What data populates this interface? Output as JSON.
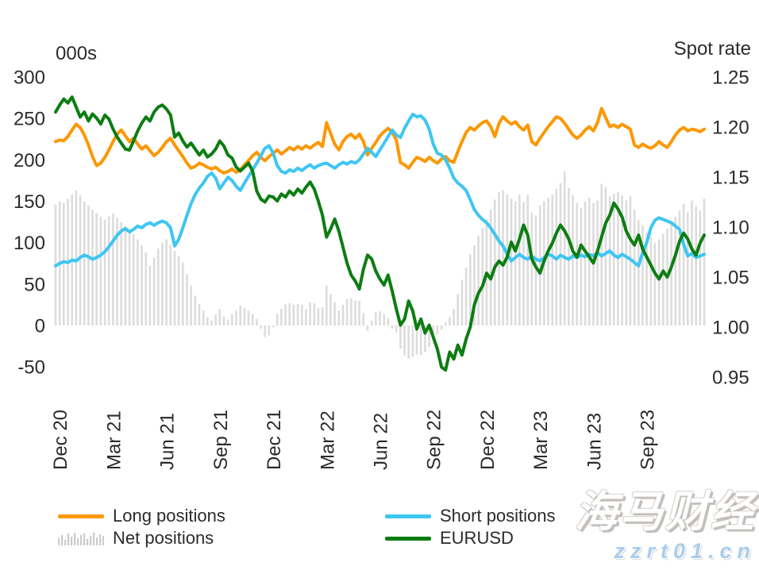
{
  "header": {
    "left_axis_unit": "000s",
    "right_axis_label": "Spot rate"
  },
  "colors": {
    "long": "#FB9804",
    "short": "#3EC6F3",
    "eurusd": "#0D7D12",
    "net": "#DCDCDC",
    "legend_net_icon": "#CBCBCB",
    "axis_text": "#2b2b2b",
    "watermark_line2": "#a9cdec"
  },
  "legend": {
    "items": [
      {
        "label": "Long positions",
        "swatch": "line",
        "color": "#FB9804"
      },
      {
        "label": "Net positions",
        "swatch": "bars",
        "color": "#CBCBCB"
      },
      {
        "label": "Short positions",
        "swatch": "line",
        "color": "#3EC6F3"
      },
      {
        "label": "EURUSD",
        "swatch": "line",
        "color": "#0D7D12"
      }
    ]
  },
  "watermark": {
    "line1": "海马财经",
    "line2": "zzrt01.cn"
  },
  "chart_data": {
    "type": "line",
    "subtype": "combo line+bar, dual axis, weekly data",
    "title": "",
    "xlabel": "",
    "ylabel_left": "000s",
    "ylabel_right": "Spot rate",
    "left_axis": {
      "ticks": [
        300,
        250,
        200,
        150,
        100,
        50,
        0,
        -50
      ],
      "range": [
        -50,
        300
      ]
    },
    "right_axis": {
      "ticks": [
        1.25,
        1.2,
        1.15,
        1.1,
        1.05,
        1.0,
        0.95
      ],
      "range": [
        0.95,
        1.25
      ]
    },
    "x_ticks": [
      {
        "label": "Dec 20",
        "index": 1
      },
      {
        "label": "Mar 21",
        "index": 14
      },
      {
        "label": "Jun 21",
        "index": 27
      },
      {
        "label": "Sep 21",
        "index": 40
      },
      {
        "label": "Dec 21",
        "index": 53
      },
      {
        "label": "Mar 22",
        "index": 66
      },
      {
        "label": "Jun 22",
        "index": 79
      },
      {
        "label": "Sep 22",
        "index": 92
      },
      {
        "label": "Dec 22",
        "index": 105
      },
      {
        "label": "Mar 23",
        "index": 118
      },
      {
        "label": "Jun 23",
        "index": 131
      },
      {
        "label": "Sep 23",
        "index": 144
      }
    ],
    "grid": false,
    "legend_position": "bottom",
    "series": [
      {
        "name": "Net positions",
        "type": "bar",
        "axis": "left",
        "color": "#DCDCDC",
        "values": [
          146,
          150,
          148,
          153,
          158,
          163,
          157,
          150,
          145,
          140,
          136,
          131,
          128,
          132,
          135,
          130,
          125,
          120,
          116,
          110,
          104,
          97,
          88,
          72,
          82,
          93,
          100,
          104,
          98,
          90,
          84,
          76,
          62,
          48,
          36,
          26,
          18,
          10,
          6,
          13,
          20,
          11,
          7,
          14,
          18,
          24,
          21,
          18,
          14,
          8,
          -4,
          -14,
          -12,
          -2,
          14,
          20,
          26,
          27,
          25,
          26,
          25,
          20,
          28,
          27,
          21,
          22,
          48,
          38,
          28,
          18,
          25,
          32,
          33,
          30,
          30,
          15,
          -7,
          6,
          16,
          17,
          14,
          9,
          -4,
          -8,
          -28,
          -36,
          -40,
          -38,
          -35,
          -36,
          -32,
          -26,
          -18,
          -11,
          -5,
          4,
          10,
          20,
          38,
          55,
          70,
          86,
          97,
          108,
          118,
          128,
          140,
          152,
          161,
          163,
          158,
          153,
          150,
          158,
          149,
          158,
          136,
          133,
          145,
          150,
          154,
          158,
          165,
          172,
          186,
          166,
          157,
          148,
          142,
          150,
          154,
          148,
          151,
          171,
          167,
          156,
          159,
          161,
          157,
          151,
          156,
          140,
          127,
          121,
          112,
          107,
          100,
          104,
          111,
          117,
          123,
          131,
          139,
          147,
          137,
          151,
          144,
          139,
          153
        ]
      },
      {
        "name": "Long positions",
        "type": "line",
        "axis": "left",
        "color": "#FB9804",
        "values": [
          222,
          224,
          223,
          228,
          236,
          243,
          239,
          230,
          218,
          204,
          193,
          196,
          203,
          212,
          222,
          231,
          236,
          229,
          222,
          226,
          219,
          213,
          217,
          211,
          205,
          209,
          215,
          222,
          226,
          218,
          211,
          204,
          196,
          190,
          192,
          196,
          194,
          191,
          189,
          191,
          187,
          184,
          186,
          189,
          185,
          188,
          194,
          199,
          205,
          209,
          203,
          199,
          204,
          208,
          212,
          207,
          211,
          215,
          212,
          216,
          213,
          217,
          214,
          218,
          221,
          216,
          245,
          232,
          219,
          212,
          222,
          228,
          231,
          226,
          231,
          222,
          206,
          214,
          221,
          229,
          234,
          238,
          233,
          224,
          197,
          194,
          190,
          197,
          203,
          201,
          198,
          203,
          199,
          196,
          201,
          204,
          199,
          197,
          210,
          222,
          233,
          239,
          236,
          241,
          245,
          247,
          240,
          228,
          244,
          252,
          247,
          243,
          246,
          240,
          236,
          242,
          222,
          218,
          226,
          233,
          240,
          246,
          252,
          250,
          244,
          237,
          230,
          226,
          230,
          236,
          240,
          235,
          245,
          262,
          251,
          240,
          242,
          239,
          243,
          240,
          237,
          218,
          215,
          219,
          216,
          214,
          217,
          222,
          218,
          215,
          222,
          230,
          236,
          239,
          235,
          237,
          236,
          234,
          237
        ]
      },
      {
        "name": "Short positions",
        "type": "line",
        "axis": "left",
        "color": "#3EC6F3",
        "values": [
          72,
          75,
          77,
          76,
          79,
          78,
          82,
          85,
          83,
          80,
          82,
          85,
          89,
          95,
          102,
          109,
          114,
          117,
          113,
          116,
          120,
          118,
          122,
          124,
          121,
          124,
          126,
          124,
          118,
          96,
          104,
          118,
          133,
          147,
          158,
          166,
          172,
          180,
          184,
          178,
          165,
          172,
          179,
          175,
          168,
          163,
          172,
          180,
          188,
          196,
          205,
          214,
          217,
          208,
          193,
          186,
          184,
          188,
          186,
          190,
          187,
          191,
          194,
          190,
          193,
          195,
          196,
          193,
          190,
          194,
          197,
          195,
          198,
          196,
          200,
          207,
          214,
          209,
          204,
          212,
          220,
          228,
          236,
          230,
          227,
          238,
          247,
          255,
          252,
          253,
          248,
          237,
          219,
          208,
          206,
          200,
          190,
          178,
          172,
          168,
          163,
          152,
          140,
          133,
          128,
          124,
          118,
          110,
          102,
          96,
          86,
          78,
          82,
          86,
          82,
          80,
          84,
          80,
          78,
          82,
          86,
          84,
          80,
          85,
          82,
          80,
          84,
          82,
          85,
          83,
          86,
          84,
          88,
          84,
          87,
          90,
          85,
          82,
          86,
          83,
          80,
          76,
          72,
          88,
          100,
          118,
          127,
          130,
          128,
          126,
          124,
          120,
          116,
          98,
          84,
          87,
          82,
          84,
          86
        ]
      },
      {
        "name": "EURUSD",
        "type": "line",
        "axis": "right",
        "color": "#0D7D12",
        "values": [
          1.215,
          1.222,
          1.228,
          1.224,
          1.23,
          1.22,
          1.21,
          1.215,
          1.206,
          1.213,
          1.209,
          1.203,
          1.212,
          1.208,
          1.198,
          1.19,
          1.184,
          1.178,
          1.177,
          1.186,
          1.196,
          1.204,
          1.21,
          1.206,
          1.215,
          1.22,
          1.222,
          1.218,
          1.212,
          1.19,
          1.194,
          1.186,
          1.18,
          1.184,
          1.178,
          1.172,
          1.177,
          1.17,
          1.173,
          1.178,
          1.186,
          1.181,
          1.172,
          1.169,
          1.16,
          1.156,
          1.16,
          1.164,
          1.156,
          1.136,
          1.128,
          1.125,
          1.131,
          1.13,
          1.126,
          1.133,
          1.13,
          1.136,
          1.132,
          1.138,
          1.134,
          1.14,
          1.145,
          1.138,
          1.126,
          1.112,
          1.09,
          1.098,
          1.108,
          1.096,
          1.08,
          1.064,
          1.052,
          1.046,
          1.038,
          1.058,
          1.072,
          1.068,
          1.056,
          1.048,
          1.042,
          1.052,
          1.036,
          1.018,
          1.002,
          1.008,
          1.026,
          1.016,
          0.998,
          1.008,
          0.994,
          1.002,
          0.99,
          0.978,
          0.96,
          0.957,
          0.975,
          0.968,
          0.982,
          0.972,
          0.988,
          1.0,
          1.022,
          1.034,
          1.041,
          1.054,
          1.048,
          1.06,
          1.066,
          1.062,
          1.07,
          1.085,
          1.076,
          1.088,
          1.102,
          1.092,
          1.068,
          1.06,
          1.054,
          1.066,
          1.076,
          1.084,
          1.094,
          1.102,
          1.096,
          1.088,
          1.076,
          1.07,
          1.082,
          1.076,
          1.07,
          1.064,
          1.076,
          1.09,
          1.104,
          1.112,
          1.124,
          1.118,
          1.11,
          1.096,
          1.088,
          1.082,
          1.092,
          1.078,
          1.07,
          1.062,
          1.054,
          1.048,
          1.056,
          1.05,
          1.06,
          1.072,
          1.086,
          1.094,
          1.088,
          1.078,
          1.072,
          1.084,
          1.092
        ]
      }
    ]
  }
}
